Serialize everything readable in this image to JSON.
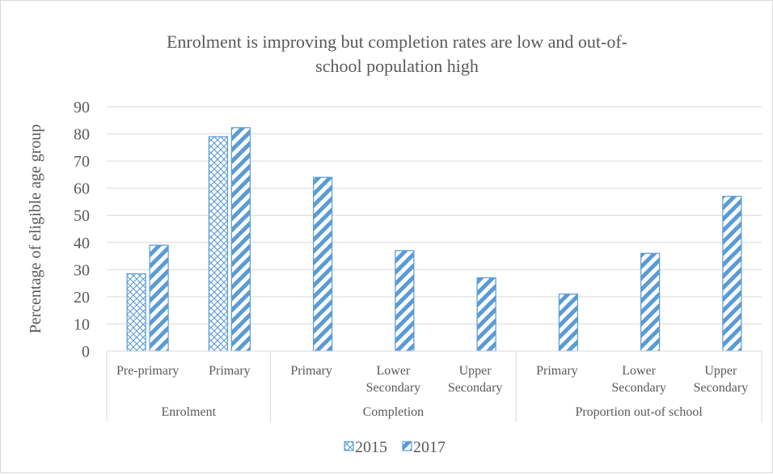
{
  "chart_data": {
    "type": "bar",
    "title_lines": [
      "Enrolment is improving but completion rates are low and out-of-",
      "school population high"
    ],
    "ylabel": "Percentage of eligible age group",
    "xlabel": "",
    "ylim": [
      0,
      90
    ],
    "yticks": [
      "0",
      "10",
      "20",
      "30",
      "40",
      "50",
      "60",
      "70",
      "80",
      "90"
    ],
    "grid": true,
    "legend_position": "bottom",
    "groups": [
      {
        "name": "Enrolment",
        "span": [
          0,
          2
        ]
      },
      {
        "name": "Completion",
        "span": [
          2,
          5
        ]
      },
      {
        "name": "Proportion out-of school",
        "span": [
          5,
          8
        ]
      }
    ],
    "categories": [
      [
        "Pre-primary"
      ],
      [
        "Primary"
      ],
      [
        "Primary"
      ],
      [
        "Lower",
        "Secondary"
      ],
      [
        "Upper",
        "Secondary"
      ],
      [
        "Primary"
      ],
      [
        "Lower",
        "Secondary"
      ],
      [
        "Upper",
        "Secondary"
      ]
    ],
    "series": [
      {
        "name": "2015",
        "pattern": "crosshatch",
        "color": "#5b9bd5",
        "values": [
          28.5,
          79,
          null,
          null,
          null,
          null,
          null,
          null
        ]
      },
      {
        "name": "2017",
        "pattern": "diagonal",
        "color": "#5b9bd5",
        "values": [
          39,
          82.3,
          64,
          37,
          27,
          21,
          36,
          57
        ]
      }
    ]
  }
}
